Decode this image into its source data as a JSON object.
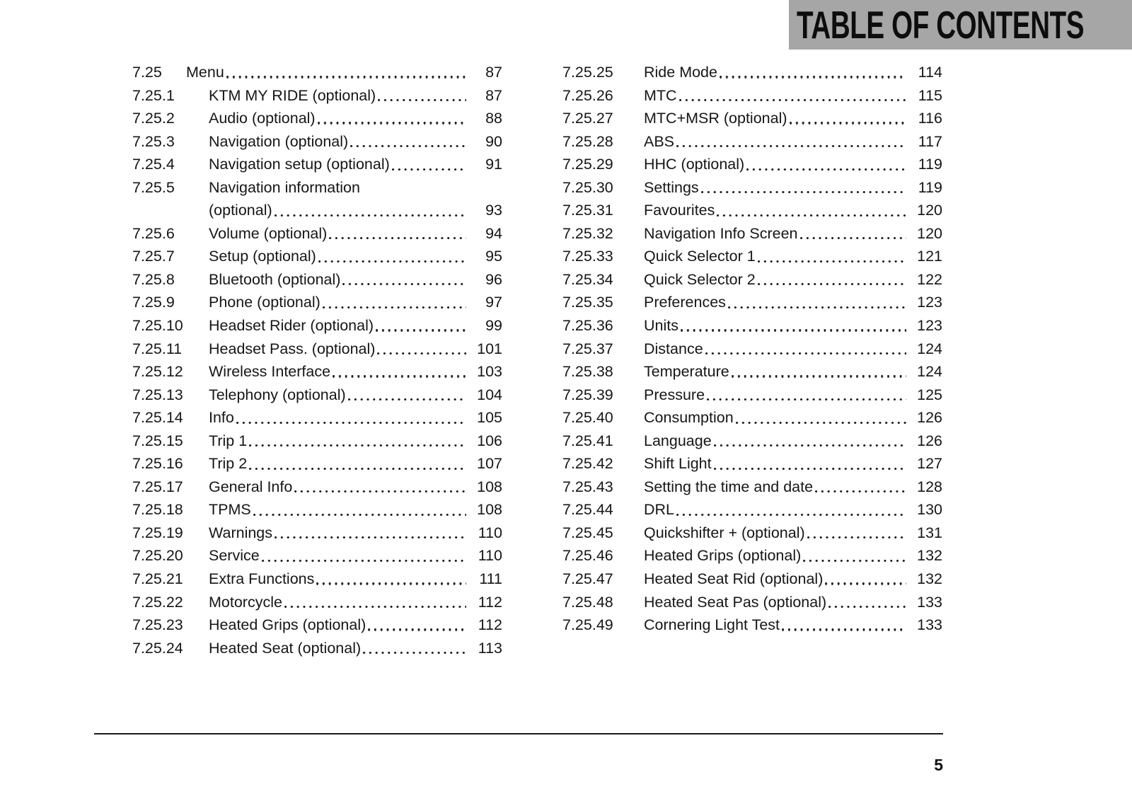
{
  "header": {
    "title": "TABLE OF CONTENTS",
    "bg_color": "#a6a6a6",
    "text_color": "#0d0d0d"
  },
  "toc": {
    "left": [
      {
        "num": "7.25",
        "title": "Menu",
        "page": "87",
        "level": 1
      },
      {
        "num": "7.25.1",
        "title": "KTM MY RIDE (optional)",
        "page": "87"
      },
      {
        "num": "7.25.2",
        "title": "Audio (optional)",
        "page": "88"
      },
      {
        "num": "7.25.3",
        "title": "Navigation (optional)",
        "page": "90"
      },
      {
        "num": "7.25.4",
        "title": "Navigation setup (optional)",
        "page": "91"
      },
      {
        "num": "7.25.5",
        "title": "Navigation information",
        "title2": "(optional)",
        "page": "93"
      },
      {
        "num": "7.25.6",
        "title": "Volume (optional)",
        "page": "94"
      },
      {
        "num": "7.25.7",
        "title": "Setup (optional)",
        "page": "95"
      },
      {
        "num": "7.25.8",
        "title": "Bluetooth (optional)",
        "page": "96"
      },
      {
        "num": "7.25.9",
        "title": "Phone (optional)",
        "page": "97"
      },
      {
        "num": "7.25.10",
        "title": "Headset Rider (optional)",
        "page": "99"
      },
      {
        "num": "7.25.11",
        "title": "Headset Pass. (optional)",
        "page": "101"
      },
      {
        "num": "7.25.12",
        "title": "Wireless Interface",
        "page": "103"
      },
      {
        "num": "7.25.13",
        "title": "Telephony (optional)",
        "page": "104"
      },
      {
        "num": "7.25.14",
        "title": "Info",
        "page": "105"
      },
      {
        "num": "7.25.15",
        "title": "Trip 1",
        "page": "106"
      },
      {
        "num": "7.25.16",
        "title": "Trip 2",
        "page": "107"
      },
      {
        "num": "7.25.17",
        "title": "General Info",
        "page": "108"
      },
      {
        "num": "7.25.18",
        "title": "TPMS",
        "page": "108"
      },
      {
        "num": "7.25.19",
        "title": "Warnings",
        "page": "110"
      },
      {
        "num": "7.25.20",
        "title": "Service",
        "page": "110"
      },
      {
        "num": "7.25.21",
        "title": "Extra Functions",
        "page": "111"
      },
      {
        "num": "7.25.22",
        "title": "Motorcycle",
        "page": "112"
      },
      {
        "num": "7.25.23",
        "title": "Heated Grips (optional)",
        "page": "112"
      },
      {
        "num": "7.25.24",
        "title": "Heated Seat (optional)",
        "page": "113"
      }
    ],
    "right": [
      {
        "num": "7.25.25",
        "title": "Ride Mode",
        "page": "114"
      },
      {
        "num": "7.25.26",
        "title": "MTC",
        "page": "115"
      },
      {
        "num": "7.25.27",
        "title": "MTC+MSR (optional)",
        "page": "116"
      },
      {
        "num": "7.25.28",
        "title": "ABS",
        "page": "117"
      },
      {
        "num": "7.25.29",
        "title": "HHC (optional)",
        "page": "119"
      },
      {
        "num": "7.25.30",
        "title": "Settings",
        "page": "119"
      },
      {
        "num": "7.25.31",
        "title": "Favourites",
        "page": "120"
      },
      {
        "num": "7.25.32",
        "title": "Navigation Info Screen",
        "page": "120"
      },
      {
        "num": "7.25.33",
        "title": "Quick Selector 1",
        "page": "121"
      },
      {
        "num": "7.25.34",
        "title": "Quick Selector 2",
        "page": "122"
      },
      {
        "num": "7.25.35",
        "title": "Preferences",
        "page": "123"
      },
      {
        "num": "7.25.36",
        "title": "Units",
        "page": "123"
      },
      {
        "num": "7.25.37",
        "title": "Distance",
        "page": "124"
      },
      {
        "num": "7.25.38",
        "title": "Temperature",
        "page": "124"
      },
      {
        "num": "7.25.39",
        "title": "Pressure",
        "page": "125"
      },
      {
        "num": "7.25.40",
        "title": "Consumption",
        "page": "126"
      },
      {
        "num": "7.25.41",
        "title": "Language",
        "page": "126"
      },
      {
        "num": "7.25.42",
        "title": "Shift Light",
        "page": "127"
      },
      {
        "num": "7.25.43",
        "title": "Setting the time and date",
        "page": "128"
      },
      {
        "num": "7.25.44",
        "title": "DRL",
        "page": "130"
      },
      {
        "num": "7.25.45",
        "title": "Quickshifter + (optional)",
        "page": "131"
      },
      {
        "num": "7.25.46",
        "title": "Heated Grips (optional)",
        "page": "132"
      },
      {
        "num": "7.25.47",
        "title": "Heated Seat Rid (optional)",
        "page": "132"
      },
      {
        "num": "7.25.48",
        "title": "Heated Seat Pas (optional)",
        "page": "133"
      },
      {
        "num": "7.25.49",
        "title": "Cornering Light Test",
        "page": "133"
      }
    ]
  },
  "footer": {
    "page_number": "5"
  }
}
